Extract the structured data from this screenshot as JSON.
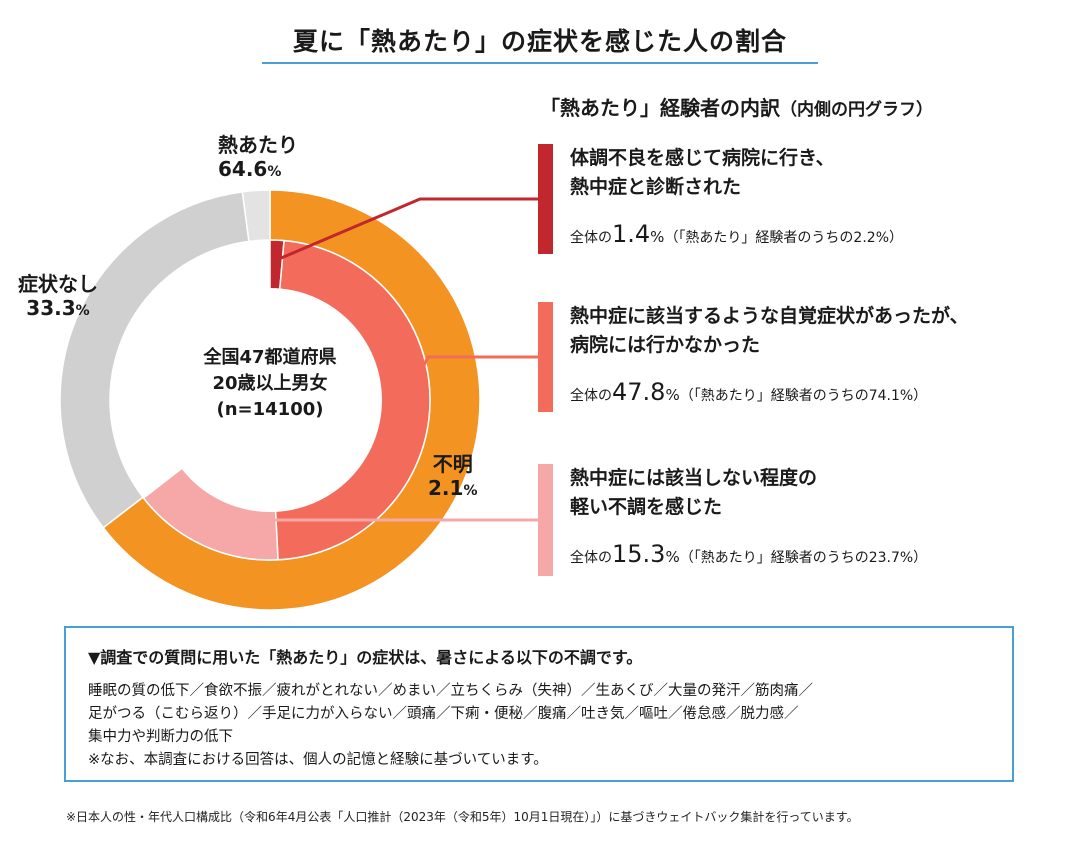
{
  "title": "夏に「熱あたり」の症状を感じた人の割合",
  "center_label": [
    "全国47都道府県",
    "20歳以上男女",
    "(n=14100)"
  ],
  "outer_labels": [
    {
      "name": "不明",
      "value": "2.1",
      "unit": "%"
    },
    {
      "name": "症状なし",
      "value": "33.3",
      "unit": "%"
    },
    {
      "name": "熱あたり",
      "value": "64.6",
      "unit": "%"
    }
  ],
  "breakdown_title": "「熱あたり」経験者の内訳",
  "breakdown_title_paren": "（内側の円グラフ）",
  "breakdown": [
    {
      "heading_lines": [
        "体調不良を感じて病院に行き、",
        "熱中症と診断された"
      ],
      "prefix": "全体の",
      "value": "1.4",
      "unit": "%",
      "suffix": "（「熱あたり」経験者のうちの2.2%）",
      "color": "#c1272d"
    },
    {
      "heading_lines": [
        "熱中症に該当するような自覚症状があったが、",
        "病院には行かなかった"
      ],
      "prefix": "全体の",
      "value": "47.8",
      "unit": "%",
      "suffix": "（「熱あたり」経験者のうちの74.1%）",
      "color": "#f26b5b"
    },
    {
      "heading_lines": [
        "熱中症には該当しない程度の",
        "軽い不調を感じた"
      ],
      "prefix": "全体の",
      "value": "15.3",
      "unit": "%",
      "suffix": "（「熱あたり」経験者のうちの23.7%）",
      "color": "#f6a7a7"
    }
  ],
  "note_heading": "▼調査での質問に用いた「熱あたり」の症状は、暑さによる以下の不調です。",
  "note_lines": [
    "睡眠の質の低下／食欲不振／疲れがとれない／めまい／立ちくらみ（失神）／生あくび／大量の発汗／筋肉痛／",
    "足がつる（こむら返り）／手足に力が入らない／頭痛／下痢・便秘／腹痛／吐き気／嘔吐／倦怠感／脱力感／",
    "集中力や判断力の低下",
    "※なお、本調査における回答は、個人の記憶と経験に基づいています。"
  ],
  "footnote": "※日本人の性・年代人口構成比（令和6年4月公表「人口推計（2023年（令和5年）10月1日現在）」）に基づきウェイトバック集計を行っています。",
  "chart_data": {
    "type": "pie",
    "rings": [
      {
        "ring": "outer",
        "slices": [
          {
            "name": "熱あたり",
            "value": 64.6,
            "color": "#f39321"
          },
          {
            "name": "症状なし",
            "value": 33.3,
            "color": "#d0d0d0"
          },
          {
            "name": "不明",
            "value": 2.1,
            "color": "#e3e3e3"
          }
        ]
      },
      {
        "ring": "inner",
        "slices": [
          {
            "name": "体調不良を感じて病院に行き、熱中症と診断された",
            "value": 1.4,
            "color": "#c1272d"
          },
          {
            "name": "熱中症に該当するような自覚症状があったが、病院には行かなかった",
            "value": 47.8,
            "color": "#f26b5b"
          },
          {
            "name": "熱中症には該当しない程度の軽い不調を感じた",
            "value": 15.3,
            "color": "#f6a7a7"
          }
        ]
      }
    ],
    "start_angle": "12 o'clock",
    "direction": "clockwise"
  }
}
